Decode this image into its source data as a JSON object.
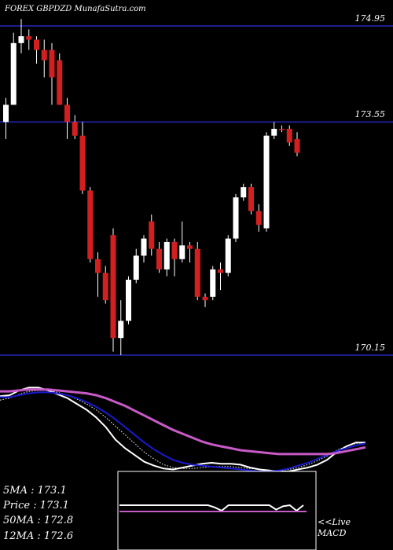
{
  "chart_data": {
    "type": "candlestick",
    "title": "FOREX  GBPDZD MunafaSutra.com",
    "ylim": [
      170.1,
      175.15
    ],
    "reference_lines": [
      {
        "label": "174.95",
        "value": 174.95
      },
      {
        "label": "173.55",
        "value": 173.55
      },
      {
        "label": "170.15",
        "value": 170.15
      }
    ],
    "candles": [
      {
        "o": 173.55,
        "h": 173.9,
        "l": 173.3,
        "c": 173.8
      },
      {
        "o": 173.8,
        "h": 174.85,
        "l": 173.8,
        "c": 174.7
      },
      {
        "o": 174.7,
        "h": 175.05,
        "l": 174.55,
        "c": 174.8
      },
      {
        "o": 174.8,
        "h": 174.9,
        "l": 174.6,
        "c": 174.75
      },
      {
        "o": 174.75,
        "h": 174.8,
        "l": 174.4,
        "c": 174.6
      },
      {
        "o": 174.6,
        "h": 174.75,
        "l": 174.2,
        "c": 174.45
      },
      {
        "o": 174.6,
        "h": 174.7,
        "l": 173.8,
        "c": 174.2
      },
      {
        "o": 174.45,
        "h": 174.55,
        "l": 173.8,
        "c": 173.8
      },
      {
        "o": 173.8,
        "h": 173.9,
        "l": 173.3,
        "c": 173.55
      },
      {
        "o": 173.55,
        "h": 173.65,
        "l": 173.3,
        "c": 173.35
      },
      {
        "o": 173.35,
        "h": 173.55,
        "l": 172.5,
        "c": 172.55
      },
      {
        "o": 172.55,
        "h": 172.6,
        "l": 171.5,
        "c": 171.55
      },
      {
        "o": 171.55,
        "h": 171.65,
        "l": 171.0,
        "c": 171.35
      },
      {
        "o": 171.35,
        "h": 171.45,
        "l": 170.9,
        "c": 170.95
      },
      {
        "o": 171.9,
        "h": 172.0,
        "l": 170.2,
        "c": 170.4
      },
      {
        "o": 170.4,
        "h": 170.95,
        "l": 170.15,
        "c": 170.65
      },
      {
        "o": 170.65,
        "h": 171.3,
        "l": 170.6,
        "c": 171.25
      },
      {
        "o": 171.25,
        "h": 171.7,
        "l": 171.2,
        "c": 171.6
      },
      {
        "o": 171.6,
        "h": 171.9,
        "l": 171.5,
        "c": 171.85
      },
      {
        "o": 172.1,
        "h": 172.2,
        "l": 171.6,
        "c": 171.7
      },
      {
        "o": 171.7,
        "h": 171.8,
        "l": 171.35,
        "c": 171.4
      },
      {
        "o": 171.4,
        "h": 171.85,
        "l": 171.3,
        "c": 171.8
      },
      {
        "o": 171.8,
        "h": 171.85,
        "l": 171.3,
        "c": 171.55
      },
      {
        "o": 171.55,
        "h": 172.1,
        "l": 171.5,
        "c": 171.75
      },
      {
        "o": 171.75,
        "h": 171.8,
        "l": 171.5,
        "c": 171.7
      },
      {
        "o": 171.7,
        "h": 171.8,
        "l": 170.95,
        "c": 171.0
      },
      {
        "o": 171.0,
        "h": 171.05,
        "l": 170.85,
        "c": 170.95
      },
      {
        "o": 171.0,
        "h": 171.45,
        "l": 170.95,
        "c": 171.4
      },
      {
        "o": 171.4,
        "h": 171.5,
        "l": 171.1,
        "c": 171.35
      },
      {
        "o": 171.35,
        "h": 171.9,
        "l": 171.3,
        "c": 171.85
      },
      {
        "o": 171.85,
        "h": 172.5,
        "l": 171.8,
        "c": 172.45
      },
      {
        "o": 172.45,
        "h": 172.65,
        "l": 172.4,
        "c": 172.6
      },
      {
        "o": 172.6,
        "h": 172.65,
        "l": 172.2,
        "c": 172.25
      },
      {
        "o": 172.25,
        "h": 172.35,
        "l": 171.95,
        "c": 172.05
      },
      {
        "o": 172.0,
        "h": 173.4,
        "l": 171.95,
        "c": 173.35
      },
      {
        "o": 173.35,
        "h": 173.55,
        "l": 173.3,
        "c": 173.45
      },
      {
        "o": 173.45,
        "h": 173.5,
        "l": 173.4,
        "c": 173.44
      },
      {
        "o": 173.45,
        "h": 173.5,
        "l": 173.2,
        "c": 173.25
      },
      {
        "o": 173.3,
        "h": 173.4,
        "l": 173.05,
        "c": 173.1
      }
    ],
    "moving_average_lines": {
      "white": [
        174.3,
        174.35,
        174.6,
        174.75,
        174.75,
        174.6,
        174.4,
        174.2,
        173.9,
        173.6,
        173.2,
        172.7,
        172.05,
        171.6,
        171.25,
        170.9,
        170.7,
        170.55,
        170.5,
        170.6,
        170.7,
        170.8,
        170.85,
        170.8,
        170.8,
        170.75,
        170.6,
        170.5,
        170.45,
        170.4,
        170.4,
        170.5,
        170.6,
        170.75,
        171.0,
        171.4,
        171.7,
        171.9,
        171.9
      ],
      "dotted": [
        174.1,
        174.2,
        174.4,
        174.55,
        174.6,
        174.6,
        174.5,
        174.35,
        174.15,
        173.9,
        173.6,
        173.2,
        172.75,
        172.3,
        171.85,
        171.4,
        171.05,
        170.75,
        170.6,
        170.55,
        170.55,
        170.6,
        170.65,
        170.65,
        170.65,
        170.6,
        170.55,
        170.5,
        170.45,
        170.45,
        170.5,
        170.6,
        170.75,
        170.95,
        171.2,
        171.5,
        171.7,
        171.85,
        171.9
      ],
      "blue": [
        174.25,
        174.25,
        174.35,
        174.45,
        174.5,
        174.5,
        174.45,
        174.35,
        174.2,
        174.0,
        173.75,
        173.45,
        173.1,
        172.7,
        172.3,
        171.9,
        171.55,
        171.25,
        171.0,
        170.85,
        170.75,
        170.7,
        170.65,
        170.6,
        170.55,
        170.5,
        170.45,
        170.4,
        170.4,
        170.45,
        170.55,
        170.7,
        170.85,
        171.05,
        171.25,
        171.45,
        171.6,
        171.75,
        171.85
      ],
      "magenta": [
        174.55,
        174.55,
        174.6,
        174.65,
        174.65,
        174.65,
        174.6,
        174.55,
        174.5,
        174.45,
        174.35,
        174.2,
        174.0,
        173.8,
        173.55,
        173.3,
        173.05,
        172.8,
        172.55,
        172.35,
        172.15,
        171.95,
        171.8,
        171.7,
        171.6,
        171.5,
        171.45,
        171.4,
        171.35,
        171.3,
        171.3,
        171.3,
        171.3,
        171.3,
        171.3,
        171.35,
        171.45,
        171.55,
        171.65
      ]
    },
    "macd_panel_label": "<<Live MACD",
    "macd_values": [
      0.5,
      0.5,
      0.5,
      0.5,
      0.5,
      0.5,
      0.5,
      0.5,
      0.5,
      0.5,
      0.5,
      0.5,
      0.5,
      0.5,
      0.4,
      0.25,
      0.5,
      0.5,
      0.5,
      0.5,
      0.5,
      0.5,
      0.5,
      0.3,
      0.45,
      0.5,
      0.25,
      0.5
    ],
    "legend": [
      {
        "label": "5MA",
        "value": "173.1"
      },
      {
        "label": "Price",
        "value": "173.1"
      },
      {
        "label": "50MA",
        "value": "172.8"
      },
      {
        "label": "12MA",
        "value": "172.6"
      }
    ],
    "colors": {
      "up": "#ffffff",
      "down": "#d21f1f",
      "reference": "#1c1c8a",
      "ma_blue": "#1a1ad0",
      "ma_magenta": "#c85ac8",
      "macd_line": "#c85ac8"
    }
  }
}
